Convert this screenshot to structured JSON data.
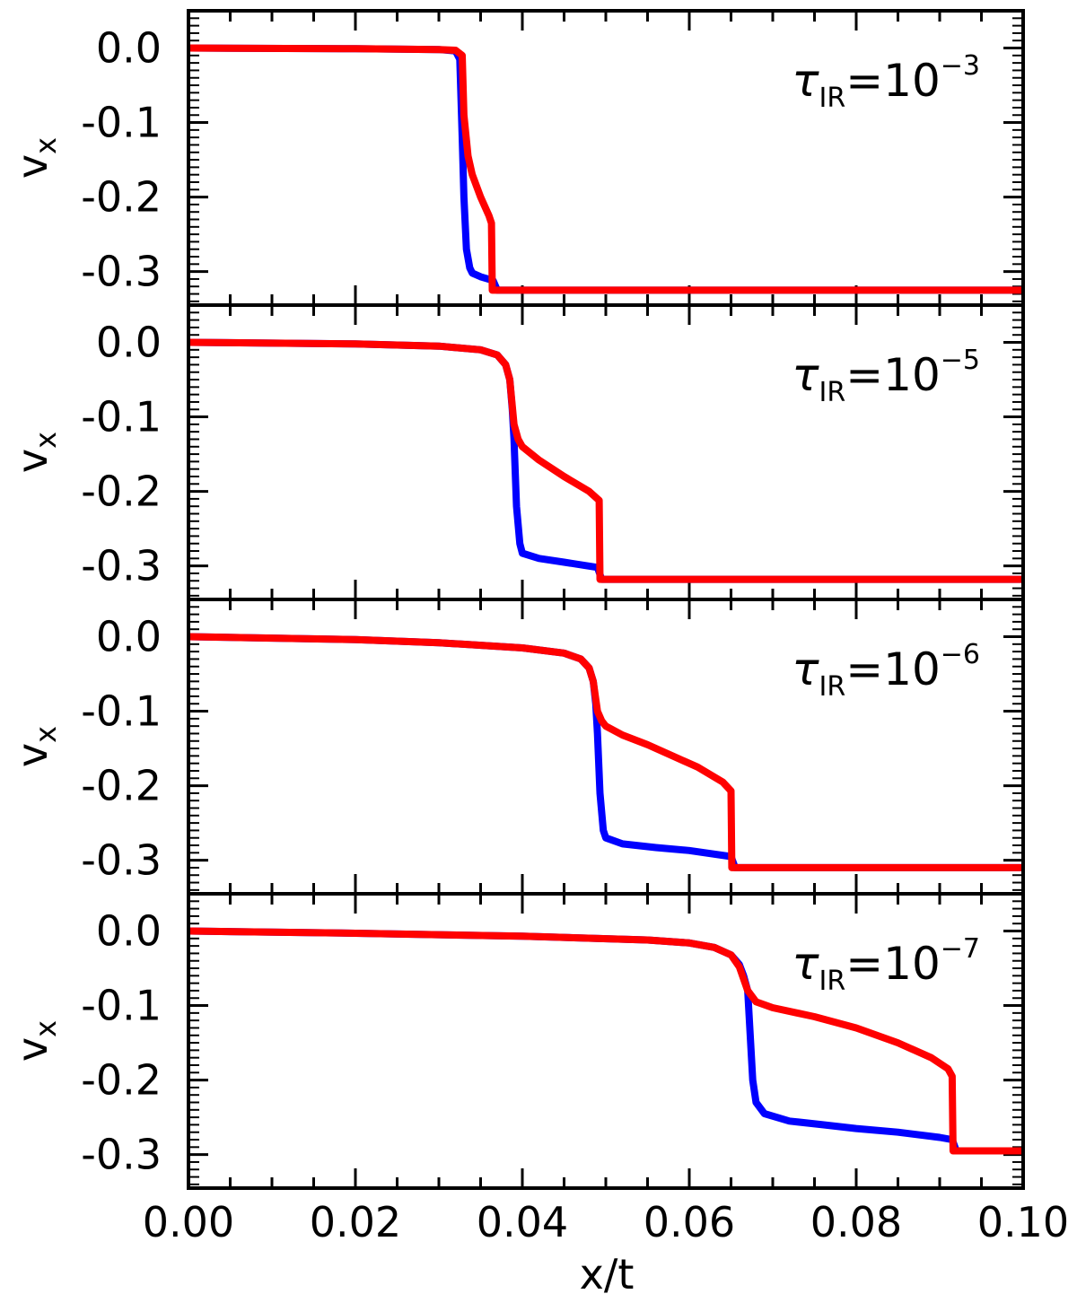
{
  "figure": {
    "xlabel": "x/t",
    "ylabel": "v",
    "ylabel_sub": "x",
    "series_colors": [
      "#0000ff",
      "#ff0000"
    ]
  },
  "chart_data": [
    {
      "type": "line",
      "annotation": {
        "symbol": "τ",
        "sub": "IR",
        "eq": "=10",
        "sup": "−3"
      },
      "xlim": [
        0.0,
        0.1
      ],
      "ylim": [
        -0.345,
        0.05
      ],
      "yticks": [
        "0.0",
        "-0.1",
        "-0.2",
        "-0.3"
      ],
      "ytick_values": [
        0.0,
        -0.1,
        -0.2,
        -0.3
      ],
      "xticks": [
        0.0,
        0.02,
        0.04,
        0.06,
        0.08,
        0.1
      ],
      "series": [
        {
          "color": "#0000ff",
          "x": [
            0.0,
            0.02,
            0.03,
            0.032,
            0.0325,
            0.0328,
            0.033,
            0.0333,
            0.0337,
            0.034,
            0.035,
            0.0365,
            0.037,
            0.1
          ],
          "y": [
            0.0,
            -0.001,
            -0.002,
            -0.004,
            -0.015,
            -0.12,
            -0.2,
            -0.27,
            -0.295,
            -0.302,
            -0.307,
            -0.312,
            -0.325,
            -0.325
          ]
        },
        {
          "color": "#ff0000",
          "x": [
            0.0,
            0.02,
            0.03,
            0.032,
            0.0328,
            0.033,
            0.0335,
            0.034,
            0.035,
            0.036,
            0.0363,
            0.0364,
            0.037,
            0.1
          ],
          "y": [
            0.0,
            -0.001,
            -0.002,
            -0.003,
            -0.01,
            -0.09,
            -0.145,
            -0.17,
            -0.2,
            -0.225,
            -0.235,
            -0.325,
            -0.325,
            -0.325
          ]
        }
      ]
    },
    {
      "type": "line",
      "annotation": {
        "symbol": "τ",
        "sub": "IR",
        "eq": "=10",
        "sup": "−5"
      },
      "xlim": [
        0.0,
        0.1
      ],
      "ylim": [
        -0.345,
        0.05
      ],
      "yticks": [
        "0.0",
        "-0.1",
        "-0.2",
        "-0.3"
      ],
      "ytick_values": [
        0.0,
        -0.1,
        -0.2,
        -0.3
      ],
      "xticks": [
        0.0,
        0.02,
        0.04,
        0.06,
        0.08,
        0.1
      ],
      "series": [
        {
          "color": "#0000ff",
          "x": [
            0.0,
            0.02,
            0.03,
            0.035,
            0.037,
            0.038,
            0.0385,
            0.0388,
            0.039,
            0.0393,
            0.0397,
            0.04,
            0.042,
            0.045,
            0.049,
            0.0495,
            0.1
          ],
          "y": [
            0.0,
            -0.002,
            -0.005,
            -0.01,
            -0.017,
            -0.03,
            -0.05,
            -0.09,
            -0.13,
            -0.22,
            -0.27,
            -0.283,
            -0.29,
            -0.295,
            -0.302,
            -0.318,
            -0.318
          ]
        },
        {
          "color": "#ff0000",
          "x": [
            0.0,
            0.02,
            0.03,
            0.035,
            0.037,
            0.038,
            0.0385,
            0.039,
            0.0395,
            0.04,
            0.042,
            0.045,
            0.048,
            0.0492,
            0.0493,
            0.05,
            0.1
          ],
          "y": [
            0.0,
            -0.002,
            -0.005,
            -0.01,
            -0.017,
            -0.03,
            -0.05,
            -0.11,
            -0.13,
            -0.14,
            -0.158,
            -0.18,
            -0.2,
            -0.212,
            -0.318,
            -0.318,
            -0.318
          ]
        }
      ]
    },
    {
      "type": "line",
      "annotation": {
        "symbol": "τ",
        "sub": "IR",
        "eq": "=10",
        "sup": "−6"
      },
      "xlim": [
        0.0,
        0.1
      ],
      "ylim": [
        -0.345,
        0.05
      ],
      "yticks": [
        "0.0",
        "-0.1",
        "-0.2",
        "-0.3"
      ],
      "ytick_values": [
        0.0,
        -0.1,
        -0.2,
        -0.3
      ],
      "xticks": [
        0.0,
        0.02,
        0.04,
        0.06,
        0.08,
        0.1
      ],
      "series": [
        {
          "color": "#0000ff",
          "x": [
            0.0,
            0.02,
            0.03,
            0.04,
            0.045,
            0.047,
            0.048,
            0.0485,
            0.0488,
            0.049,
            0.0493,
            0.0497,
            0.05,
            0.052,
            0.056,
            0.06,
            0.065,
            0.0655,
            0.1
          ],
          "y": [
            0.0,
            -0.004,
            -0.008,
            -0.015,
            -0.022,
            -0.03,
            -0.042,
            -0.06,
            -0.09,
            -0.13,
            -0.21,
            -0.26,
            -0.27,
            -0.278,
            -0.283,
            -0.287,
            -0.295,
            -0.31,
            -0.31
          ]
        },
        {
          "color": "#ff0000",
          "x": [
            0.0,
            0.02,
            0.03,
            0.04,
            0.045,
            0.047,
            0.048,
            0.0485,
            0.049,
            0.0495,
            0.05,
            0.052,
            0.055,
            0.058,
            0.061,
            0.064,
            0.065,
            0.0651,
            0.066,
            0.1
          ],
          "y": [
            0.0,
            -0.004,
            -0.008,
            -0.015,
            -0.022,
            -0.03,
            -0.042,
            -0.06,
            -0.1,
            -0.113,
            -0.12,
            -0.132,
            -0.145,
            -0.16,
            -0.175,
            -0.195,
            -0.207,
            -0.31,
            -0.31,
            -0.31
          ]
        }
      ]
    },
    {
      "type": "line",
      "annotation": {
        "symbol": "τ",
        "sub": "IR",
        "eq": "=10",
        "sup": "−7"
      },
      "xlim": [
        0.0,
        0.1
      ],
      "ylim": [
        -0.345,
        0.05
      ],
      "yticks": [
        "0.0",
        "-0.1",
        "-0.2",
        "-0.3"
      ],
      "ytick_values": [
        0.0,
        -0.1,
        -0.2,
        -0.3
      ],
      "xticks": [
        0.0,
        0.02,
        0.04,
        0.06,
        0.08,
        0.1
      ],
      "series": [
        {
          "color": "#0000ff",
          "x": [
            0.0,
            0.02,
            0.04,
            0.055,
            0.06,
            0.063,
            0.065,
            0.066,
            0.0665,
            0.067,
            0.0673,
            0.0676,
            0.068,
            0.069,
            0.072,
            0.076,
            0.08,
            0.085,
            0.09,
            0.0915,
            0.092,
            0.1
          ],
          "y": [
            0.0,
            -0.003,
            -0.007,
            -0.012,
            -0.016,
            -0.022,
            -0.032,
            -0.045,
            -0.06,
            -0.08,
            -0.14,
            -0.2,
            -0.23,
            -0.245,
            -0.255,
            -0.26,
            -0.265,
            -0.27,
            -0.277,
            -0.28,
            -0.295,
            -0.295
          ]
        },
        {
          "color": "#ff0000",
          "x": [
            0.0,
            0.02,
            0.04,
            0.055,
            0.06,
            0.063,
            0.065,
            0.066,
            0.067,
            0.068,
            0.07,
            0.075,
            0.08,
            0.085,
            0.089,
            0.091,
            0.0915,
            0.0916,
            0.092,
            0.1
          ],
          "y": [
            0.0,
            -0.003,
            -0.007,
            -0.012,
            -0.016,
            -0.022,
            -0.032,
            -0.048,
            -0.08,
            -0.095,
            -0.103,
            -0.115,
            -0.13,
            -0.15,
            -0.17,
            -0.185,
            -0.195,
            -0.295,
            -0.295,
            -0.295
          ]
        }
      ]
    }
  ]
}
